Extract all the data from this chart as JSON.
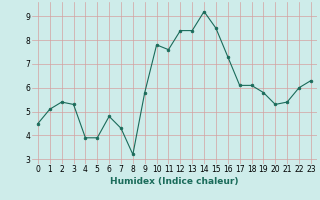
{
  "x": [
    0,
    1,
    2,
    3,
    4,
    5,
    6,
    7,
    8,
    9,
    10,
    11,
    12,
    13,
    14,
    15,
    16,
    17,
    18,
    19,
    20,
    21,
    22,
    23
  ],
  "y": [
    4.5,
    5.1,
    5.4,
    5.3,
    3.9,
    3.9,
    4.8,
    4.3,
    3.2,
    5.8,
    7.8,
    7.6,
    8.4,
    8.4,
    9.2,
    8.5,
    7.3,
    6.1,
    6.1,
    5.8,
    5.3,
    5.4,
    6.0,
    6.3
  ],
  "xlabel": "Humidex (Indice chaleur)",
  "xlim": [
    -0.5,
    23.5
  ],
  "ylim": [
    2.8,
    9.6
  ],
  "yticks": [
    3,
    4,
    5,
    6,
    7,
    8,
    9
  ],
  "xticks": [
    0,
    1,
    2,
    3,
    4,
    5,
    6,
    7,
    8,
    9,
    10,
    11,
    12,
    13,
    14,
    15,
    16,
    17,
    18,
    19,
    20,
    21,
    22,
    23
  ],
  "line_color": "#1a6b5a",
  "marker_size": 2.0,
  "bg_color": "#ceecea",
  "grid_color": "#d4a0a0",
  "tick_fontsize": 5.5,
  "xlabel_fontsize": 6.5
}
